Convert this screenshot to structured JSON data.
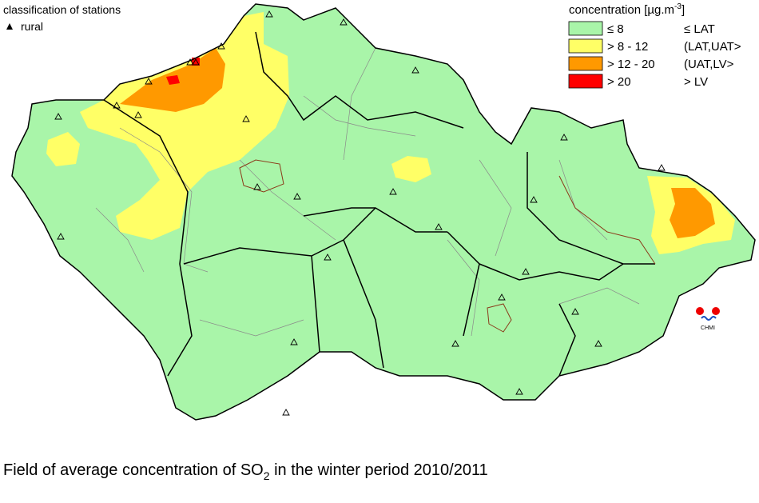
{
  "stations": {
    "title": "classification of stations",
    "items": [
      "rural"
    ]
  },
  "legend": {
    "title": {
      "text": "concentration [µg.m",
      "sup": "-3",
      "end": "]"
    },
    "items": [
      {
        "range": "≤ 8",
        "class": "≤ LAT",
        "color": "#a9f5a9"
      },
      {
        "range": "> 8 - 12",
        "class": "(LAT,UAT>",
        "color": "#ffff66"
      },
      {
        "range": "> 12 - 20",
        "class": "(UAT,LV>",
        "color": "#ff9900"
      },
      {
        "range": "> 20",
        "class": "> LV",
        "color": "#ff0000"
      }
    ]
  },
  "caption": {
    "text": "Field of average concentration of SO",
    "sub": "2",
    "end": " in the winter period 2010/2011"
  },
  "logo": "CHMI"
}
